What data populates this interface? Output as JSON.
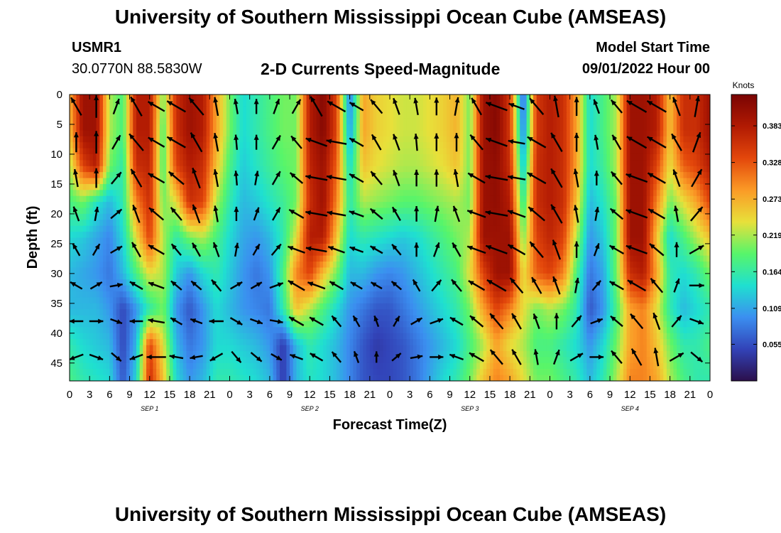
{
  "header": {
    "title": "University of Southern Mississippi Ocean Cube (AMSEAS)",
    "station_id": "USMR1",
    "coordinates": "30.0770N  88.5830W",
    "subtitle": "2-D Currents Speed-Magnitude",
    "model_start_label": "Model Start Time",
    "model_start_value": "09/01/2022 Hour 00"
  },
  "footer": {
    "title": "University of Southern Mississippi Ocean Cube (AMSEAS)"
  },
  "chart_data": {
    "type": "heatmap",
    "title": "2-D Currents Speed-Magnitude",
    "xlabel": "Forecast Time(Z)",
    "ylabel": "Depth (ft)",
    "xlim": [
      0,
      96
    ],
    "ylim": [
      48,
      0
    ],
    "x_ticks": [
      0,
      3,
      6,
      9,
      12,
      15,
      18,
      21,
      24,
      27,
      30,
      33,
      36,
      39,
      42,
      45,
      48,
      51,
      54,
      57,
      60,
      63,
      66,
      69,
      72,
      75,
      78,
      81,
      84,
      87,
      90,
      93,
      96
    ],
    "x_tick_labels": [
      "0",
      "3",
      "6",
      "9",
      "12",
      "15",
      "18",
      "21",
      "0",
      "3",
      "6",
      "9",
      "12",
      "15",
      "18",
      "21",
      "0",
      "3",
      "6",
      "9",
      "12",
      "15",
      "18",
      "21",
      "0",
      "3",
      "6",
      "9",
      "12",
      "15",
      "18",
      "21",
      "0"
    ],
    "y_ticks": [
      0,
      5,
      10,
      15,
      20,
      25,
      30,
      35,
      40,
      45
    ],
    "y_tick_labels": [
      "0",
      "5",
      "10",
      "15",
      "20",
      "25",
      "30",
      "35",
      "40",
      "45"
    ],
    "day_labels": [
      {
        "x": 12,
        "text": "SEP 1"
      },
      {
        "x": 36,
        "text": "SEP 2"
      },
      {
        "x": 60,
        "text": "SEP 3"
      },
      {
        "x": 84,
        "text": "SEP 4"
      }
    ],
    "colorbar": {
      "units": "Knots",
      "min": 0.0,
      "max": 0.43,
      "ticks": [
        0.055,
        0.109,
        0.164,
        0.219,
        0.273,
        0.328,
        0.383
      ],
      "tick_labels": [
        "0.055",
        "0.109",
        "0.164",
        "0.219",
        "0.273",
        "0.328",
        "0.383"
      ],
      "colors": [
        "#2b0f4b",
        "#3243b8",
        "#3b8ff0",
        "#1fe0d0",
        "#57f56a",
        "#e8e03a",
        "#fb9a26",
        "#e3470b",
        "#b11a03",
        "#7a0403"
      ]
    },
    "speed_field": {
      "description": "estimated current speed (knots) at forecast hour (x) and depth (y)",
      "x": [
        0,
        2,
        4,
        6,
        8,
        10,
        12,
        14,
        16,
        18,
        20,
        22,
        24,
        26,
        28,
        30,
        32,
        34,
        36,
        38,
        40,
        42,
        44,
        46,
        48,
        50,
        52,
        54,
        56,
        58,
        60,
        62,
        64,
        66,
        68,
        70,
        72,
        74,
        76,
        78,
        80,
        82,
        84,
        86,
        88,
        90,
        92,
        94,
        96
      ],
      "y": [
        0,
        6,
        12,
        18,
        24,
        30,
        36,
        42,
        48
      ],
      "values": [
        [
          0.27,
          0.4,
          0.4,
          0.22,
          0.18,
          0.38,
          0.38,
          0.2,
          0.36,
          0.4,
          0.38,
          0.28,
          0.2,
          0.14,
          0.16,
          0.18,
          0.2,
          0.2,
          0.38,
          0.42,
          0.34,
          0.08,
          0.28,
          0.25,
          0.24,
          0.23,
          0.23,
          0.24,
          0.25,
          0.27,
          0.2,
          0.4,
          0.42,
          0.35,
          0.06,
          0.35,
          0.38,
          0.36,
          0.28,
          0.14,
          0.18,
          0.22,
          0.4,
          0.4,
          0.38,
          0.26,
          0.36,
          0.36,
          0.4
        ],
        [
          0.26,
          0.4,
          0.4,
          0.22,
          0.18,
          0.38,
          0.38,
          0.18,
          0.36,
          0.4,
          0.38,
          0.28,
          0.2,
          0.14,
          0.16,
          0.18,
          0.2,
          0.2,
          0.38,
          0.42,
          0.34,
          0.1,
          0.28,
          0.25,
          0.24,
          0.23,
          0.23,
          0.24,
          0.25,
          0.27,
          0.2,
          0.4,
          0.42,
          0.35,
          0.08,
          0.35,
          0.38,
          0.36,
          0.28,
          0.14,
          0.18,
          0.22,
          0.4,
          0.4,
          0.38,
          0.26,
          0.36,
          0.36,
          0.4
        ],
        [
          0.22,
          0.34,
          0.38,
          0.2,
          0.16,
          0.36,
          0.37,
          0.18,
          0.34,
          0.38,
          0.36,
          0.26,
          0.18,
          0.13,
          0.15,
          0.17,
          0.19,
          0.2,
          0.37,
          0.4,
          0.32,
          0.14,
          0.26,
          0.24,
          0.23,
          0.22,
          0.22,
          0.23,
          0.24,
          0.26,
          0.2,
          0.4,
          0.41,
          0.36,
          0.12,
          0.36,
          0.38,
          0.36,
          0.28,
          0.14,
          0.17,
          0.22,
          0.4,
          0.4,
          0.34,
          0.24,
          0.32,
          0.34,
          0.38
        ],
        [
          0.18,
          0.2,
          0.15,
          0.12,
          0.16,
          0.3,
          0.36,
          0.2,
          0.24,
          0.36,
          0.34,
          0.22,
          0.16,
          0.12,
          0.13,
          0.15,
          0.17,
          0.2,
          0.36,
          0.4,
          0.3,
          0.16,
          0.22,
          0.21,
          0.2,
          0.19,
          0.19,
          0.2,
          0.21,
          0.22,
          0.2,
          0.4,
          0.41,
          0.38,
          0.16,
          0.36,
          0.38,
          0.36,
          0.26,
          0.12,
          0.15,
          0.2,
          0.4,
          0.4,
          0.3,
          0.2,
          0.24,
          0.28,
          0.34
        ],
        [
          0.14,
          0.13,
          0.11,
          0.09,
          0.14,
          0.24,
          0.34,
          0.22,
          0.16,
          0.2,
          0.22,
          0.18,
          0.14,
          0.11,
          0.1,
          0.12,
          0.16,
          0.24,
          0.38,
          0.38,
          0.26,
          0.14,
          0.16,
          0.15,
          0.14,
          0.13,
          0.14,
          0.16,
          0.18,
          0.2,
          0.22,
          0.4,
          0.4,
          0.4,
          0.2,
          0.34,
          0.37,
          0.34,
          0.22,
          0.1,
          0.13,
          0.2,
          0.4,
          0.4,
          0.26,
          0.14,
          0.18,
          0.22,
          0.26
        ],
        [
          0.12,
          0.11,
          0.1,
          0.08,
          0.12,
          0.18,
          0.24,
          0.22,
          0.13,
          0.1,
          0.14,
          0.16,
          0.13,
          0.1,
          0.08,
          0.1,
          0.18,
          0.3,
          0.34,
          0.26,
          0.2,
          0.12,
          0.12,
          0.1,
          0.09,
          0.1,
          0.12,
          0.14,
          0.16,
          0.18,
          0.24,
          0.34,
          0.4,
          0.4,
          0.24,
          0.32,
          0.34,
          0.3,
          0.18,
          0.08,
          0.11,
          0.2,
          0.36,
          0.38,
          0.28,
          0.16,
          0.14,
          0.16,
          0.2
        ],
        [
          0.12,
          0.12,
          0.12,
          0.1,
          0.05,
          0.1,
          0.16,
          0.2,
          0.1,
          0.06,
          0.1,
          0.14,
          0.12,
          0.1,
          0.09,
          0.08,
          0.16,
          0.26,
          0.22,
          0.18,
          0.14,
          0.1,
          0.08,
          0.06,
          0.06,
          0.08,
          0.1,
          0.12,
          0.14,
          0.16,
          0.2,
          0.28,
          0.34,
          0.3,
          0.24,
          0.2,
          0.22,
          0.2,
          0.16,
          0.06,
          0.1,
          0.18,
          0.28,
          0.3,
          0.24,
          0.16,
          0.12,
          0.14,
          0.16
        ],
        [
          0.16,
          0.14,
          0.13,
          0.12,
          0.05,
          0.12,
          0.34,
          0.24,
          0.12,
          0.08,
          0.1,
          0.14,
          0.14,
          0.13,
          0.12,
          0.1,
          0.04,
          0.12,
          0.16,
          0.14,
          0.12,
          0.09,
          0.06,
          0.04,
          0.05,
          0.06,
          0.08,
          0.1,
          0.12,
          0.14,
          0.18,
          0.22,
          0.28,
          0.24,
          0.22,
          0.18,
          0.18,
          0.16,
          0.14,
          0.1,
          0.14,
          0.2,
          0.28,
          0.3,
          0.26,
          0.2,
          0.16,
          0.16,
          0.18
        ],
        [
          0.18,
          0.16,
          0.15,
          0.14,
          0.06,
          0.14,
          0.36,
          0.26,
          0.14,
          0.1,
          0.12,
          0.16,
          0.16,
          0.15,
          0.14,
          0.12,
          0.04,
          0.12,
          0.15,
          0.14,
          0.12,
          0.09,
          0.06,
          0.05,
          0.05,
          0.06,
          0.08,
          0.11,
          0.14,
          0.16,
          0.2,
          0.26,
          0.3,
          0.28,
          0.24,
          0.2,
          0.2,
          0.18,
          0.16,
          0.12,
          0.16,
          0.22,
          0.3,
          0.3,
          0.28,
          0.22,
          0.18,
          0.16,
          0.16
        ]
      ]
    },
    "arrow_field": {
      "description": "current direction in degrees (0 = north/up, 90 = east/right), sampled every 3 hours (x) at depths (y)",
      "x": [
        1,
        4,
        7,
        10,
        13,
        16,
        19,
        22,
        25,
        28,
        31,
        34,
        37,
        40,
        43,
        46,
        49,
        52,
        55,
        58,
        61,
        64,
        67,
        70,
        73,
        76,
        79,
        82,
        85,
        88,
        91,
        94
      ],
      "y": [
        2,
        8,
        14,
        20,
        26,
        32,
        38,
        44
      ],
      "directions": [
        [
          330,
          0,
          20,
          330,
          300,
          300,
          320,
          350,
          350,
          0,
          20,
          30,
          330,
          300,
          300,
          320,
          340,
          350,
          0,
          10,
          330,
          290,
          290,
          320,
          350,
          0,
          340,
          320,
          300,
          300,
          340,
          10
        ],
        [
          0,
          0,
          30,
          320,
          300,
          300,
          330,
          350,
          355,
          0,
          30,
          320,
          290,
          280,
          300,
          330,
          340,
          355,
          0,
          0,
          320,
          290,
          280,
          300,
          330,
          0,
          350,
          330,
          300,
          300,
          330,
          20
        ],
        [
          350,
          0,
          40,
          330,
          300,
          310,
          340,
          350,
          355,
          10,
          30,
          310,
          280,
          280,
          300,
          320,
          340,
          0,
          0,
          350,
          300,
          280,
          280,
          300,
          330,
          350,
          0,
          320,
          290,
          300,
          340,
          30
        ],
        [
          340,
          10,
          50,
          340,
          310,
          320,
          340,
          350,
          0,
          20,
          30,
          300,
          280,
          280,
          290,
          310,
          330,
          0,
          10,
          340,
          290,
          280,
          290,
          310,
          330,
          350,
          10,
          310,
          290,
          300,
          350,
          40
        ],
        [
          330,
          30,
          60,
          330,
          300,
          320,
          330,
          340,
          10,
          30,
          40,
          290,
          280,
          290,
          290,
          300,
          320,
          0,
          20,
          330,
          290,
          290,
          300,
          320,
          340,
          0,
          20,
          300,
          290,
          310,
          0,
          60
        ],
        [
          300,
          60,
          80,
          300,
          290,
          310,
          310,
          320,
          60,
          60,
          70,
          300,
          290,
          300,
          300,
          300,
          310,
          330,
          40,
          320,
          300,
          300,
          320,
          330,
          340,
          10,
          40,
          300,
          300,
          320,
          20,
          90
        ],
        [
          270,
          90,
          110,
          270,
          280,
          300,
          290,
          270,
          120,
          110,
          100,
          300,
          300,
          320,
          330,
          340,
          30,
          60,
          70,
          300,
          310,
          320,
          330,
          340,
          0,
          40,
          70,
          310,
          320,
          340,
          40,
          110
        ],
        [
          250,
          110,
          130,
          250,
          270,
          280,
          260,
          240,
          140,
          130,
          120,
          290,
          300,
          320,
          340,
          0,
          50,
          80,
          90,
          290,
          300,
          320,
          330,
          350,
          20,
          60,
          90,
          320,
          330,
          350,
          60,
          130
        ]
      ]
    }
  }
}
